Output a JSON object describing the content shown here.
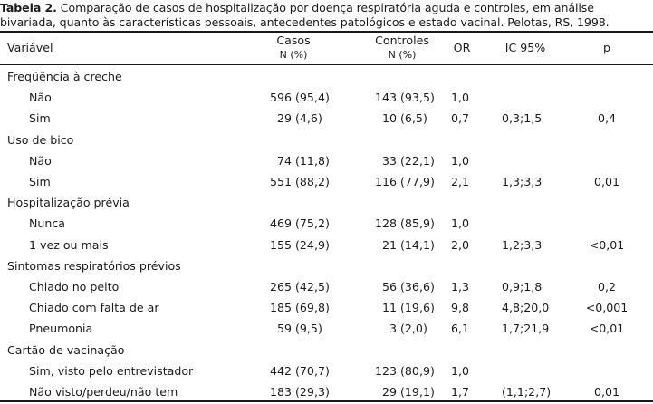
{
  "caption": {
    "label": "Tabela 2.",
    "text": " Comparação de casos  de hospitalização por doença respiratória aguda e controles, em análise bivariada, quanto às características pessoais, antecedentes patológicos e estado vacinal. Pelotas, RS, 1998."
  },
  "header": {
    "variavel": "Variável",
    "casos": "Casos",
    "casos_unit": "N (%)",
    "controles": "Controles",
    "controles_unit": "N (%)",
    "or": "OR",
    "ic": "IC 95%",
    "p": "p"
  },
  "rows": [
    {
      "type": "section",
      "var": "Freqüência à creche"
    },
    {
      "type": "item",
      "var": "Não",
      "casos_n": "596",
      "casos_pct": "(95,4)",
      "ctrl_n": "143",
      "ctrl_pct": "(93,5)",
      "or": "1,0",
      "ic": "",
      "p": ""
    },
    {
      "type": "item",
      "var": "Sim",
      "casos_n": "29",
      "casos_pct": "(4,6)",
      "ctrl_n": "10",
      "ctrl_pct": "(6,5)",
      "or": "0,7",
      "ic": "0,3;1,5",
      "p": "0,4"
    },
    {
      "type": "section",
      "var": "Uso de bico"
    },
    {
      "type": "item",
      "var": "Não",
      "casos_n": "74",
      "casos_pct": "(11,8)",
      "ctrl_n": "33",
      "ctrl_pct": "(22,1)",
      "or": "1,0",
      "ic": "",
      "p": ""
    },
    {
      "type": "item",
      "var": "Sim",
      "casos_n": "551",
      "casos_pct": "(88,2)",
      "ctrl_n": "116",
      "ctrl_pct": "(77,9)",
      "or": "2,1",
      "ic": "1,3;3,3",
      "p": "0,01"
    },
    {
      "type": "section",
      "var": "Hospitalização prévia"
    },
    {
      "type": "item",
      "var": "Nunca",
      "casos_n": "469",
      "casos_pct": "(75,2)",
      "ctrl_n": "128",
      "ctrl_pct": "(85,9)",
      "or": "1,0",
      "ic": "",
      "p": ""
    },
    {
      "type": "item",
      "var": "1 vez ou mais",
      "casos_n": "155",
      "casos_pct": "(24,9)",
      "ctrl_n": "21",
      "ctrl_pct": "(14,1)",
      "or": "2,0",
      "ic": "1,2;3,3",
      "p": "<0,01"
    },
    {
      "type": "section",
      "var": "Sintomas respiratórios prévios"
    },
    {
      "type": "item",
      "var": "Chiado no peito",
      "casos_n": "265",
      "casos_pct": "(42,5)",
      "ctrl_n": "56",
      "ctrl_pct": "(36,6)",
      "or": "1,3",
      "ic": "0,9;1,8",
      "p": "0,2"
    },
    {
      "type": "item",
      "var": "Chiado com falta de ar",
      "casos_n": "185",
      "casos_pct": "(69,8)",
      "ctrl_n": "11",
      "ctrl_pct": "(19,6)",
      "or": "9,8",
      "ic": "4,8;20,0",
      "p": "<0,001"
    },
    {
      "type": "item",
      "var": "Pneumonia",
      "casos_n": "59",
      "casos_pct": "(9,5)",
      "ctrl_n": "3",
      "ctrl_pct": "(2,0)",
      "or": "6,1",
      "ic": "1,7;21,9",
      "p": "<0,01"
    },
    {
      "type": "section",
      "var": "Cartão de vacinação"
    },
    {
      "type": "item",
      "var": "Sim, visto pelo entrevistador",
      "casos_n": "442",
      "casos_pct": "(70,7)",
      "ctrl_n": "123",
      "ctrl_pct": "(80,9)",
      "or": "1,0",
      "ic": "",
      "p": ""
    },
    {
      "type": "item",
      "var": "Não visto/perdeu/não tem",
      "casos_n": "183",
      "casos_pct": "(29,3)",
      "ctrl_n": "29",
      "ctrl_pct": "(19,1)",
      "or": "1,7",
      "ic": "(1,1;2,7)",
      "p": "0,01"
    }
  ]
}
